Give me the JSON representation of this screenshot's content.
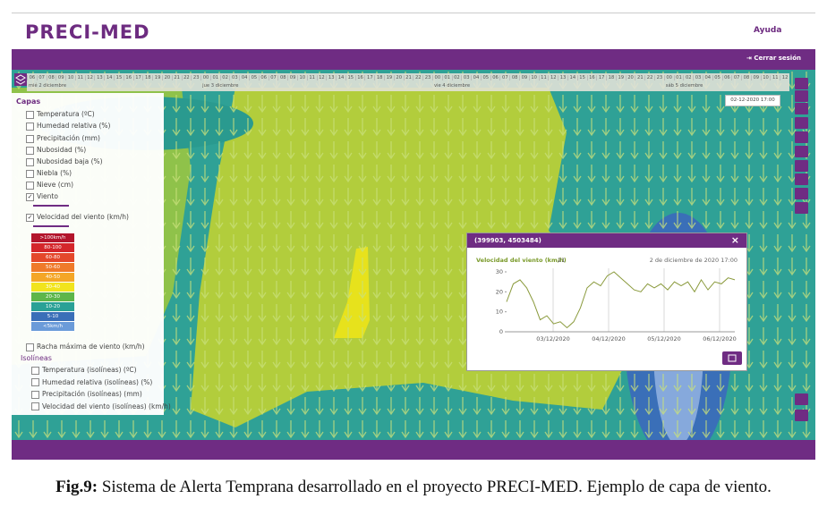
{
  "header": {
    "logo": "PRECI-MED",
    "help": "Ayuda",
    "logout": "Cerrar sesión"
  },
  "timeline": {
    "days": [
      {
        "label": "mié 2 diciembre",
        "hours": [
          "06",
          "07",
          "08",
          "09",
          "10",
          "11",
          "12",
          "13",
          "14",
          "15",
          "16",
          "17",
          "18",
          "19",
          "20",
          "21",
          "22",
          "23"
        ]
      },
      {
        "label": "jue 3 diciembre",
        "hours": [
          "00",
          "01",
          "02",
          "03",
          "04",
          "05",
          "06",
          "07",
          "08",
          "09",
          "10",
          "11",
          "12",
          "13",
          "14",
          "15",
          "16",
          "17",
          "18",
          "19",
          "20",
          "21",
          "22",
          "23"
        ]
      },
      {
        "label": "vie 4 diciembre",
        "hours": [
          "00",
          "01",
          "02",
          "03",
          "04",
          "05",
          "06",
          "07",
          "08",
          "09",
          "10",
          "11",
          "12",
          "13",
          "14",
          "15",
          "16",
          "17",
          "18",
          "19",
          "20",
          "21",
          "22",
          "23"
        ]
      },
      {
        "label": "sáb 5 diciembre",
        "hours": [
          "00",
          "01",
          "02",
          "03",
          "04",
          "05",
          "06",
          "07",
          "08",
          "09",
          "10",
          "11",
          "12"
        ]
      }
    ],
    "date": "02-12-2020 17:00"
  },
  "layers": {
    "title": "Capas",
    "items": [
      {
        "label": "Temperatura (ºC)",
        "checked": false
      },
      {
        "label": "Humedad relativa (%)",
        "checked": false
      },
      {
        "label": "Precipitación (mm)",
        "checked": false
      },
      {
        "label": "Nubosidad (%)",
        "checked": false
      },
      {
        "label": "Nubosidad baja (%)",
        "checked": false
      },
      {
        "label": "Niebla (%)",
        "checked": false
      },
      {
        "label": "Nieve (cm)",
        "checked": false
      },
      {
        "label": "Viento",
        "checked": true
      },
      {
        "label": "Velocidad del viento (km/h)",
        "checked": true
      }
    ],
    "legend": [
      {
        "label": ">100km/h",
        "color": "#b3152c"
      },
      {
        "label": "80-100",
        "color": "#d4262b"
      },
      {
        "label": "60-80",
        "color": "#e4482b"
      },
      {
        "label": "50-60",
        "color": "#ef7a2a"
      },
      {
        "label": "40-50",
        "color": "#f4a627"
      },
      {
        "label": "30-40",
        "color": "#f1e41d"
      },
      {
        "label": "20-30",
        "color": "#5db64a"
      },
      {
        "label": "10-20",
        "color": "#2aa196"
      },
      {
        "label": "5-10",
        "color": "#3a6fb8"
      },
      {
        "label": "<5km/h",
        "color": "#6b9bd9"
      }
    ],
    "extra": {
      "label": "Racha máxima de viento (km/h)",
      "checked": false
    },
    "iso_title": "Isolíneas",
    "iso_items": [
      {
        "label": "Temperatura (isolíneas) (ºC)",
        "checked": false
      },
      {
        "label": "Humedad relativa (isolíneas) (%)",
        "checked": false
      },
      {
        "label": "Precipitación (isolíneas) (mm)",
        "checked": false
      },
      {
        "label": "Velocidad del viento (isolíneas) (km/h)",
        "checked": false
      }
    ]
  },
  "popup": {
    "title": "(399903, 4503484)",
    "close": "×",
    "chart_data": {
      "type": "line",
      "title": "Velocidad del viento (km/h)",
      "current": 21,
      "subtitle": "2 de diciembre de 2020 17:00",
      "color": "#8a9a3c",
      "values": [
        15,
        24,
        26,
        22,
        15,
        6,
        8,
        4,
        5,
        2,
        5,
        12,
        22,
        25,
        23,
        28,
        30,
        27,
        24,
        21,
        20,
        24,
        22,
        24,
        21,
        25,
        23,
        25,
        20,
        26,
        21,
        25,
        24,
        27,
        26
      ],
      "ylim": [
        0,
        30
      ],
      "yticks": [
        0,
        10,
        20,
        30
      ],
      "xticks": [
        "03/12/2020",
        "04/12/2020",
        "05/12/2020",
        "06/12/2020"
      ]
    }
  },
  "caption": {
    "label": "Fig.9:",
    "text": "Sistema de Alerta Temprana desarrollado en el proyecto PRECI-MED. Ejemplo de capa de viento."
  }
}
